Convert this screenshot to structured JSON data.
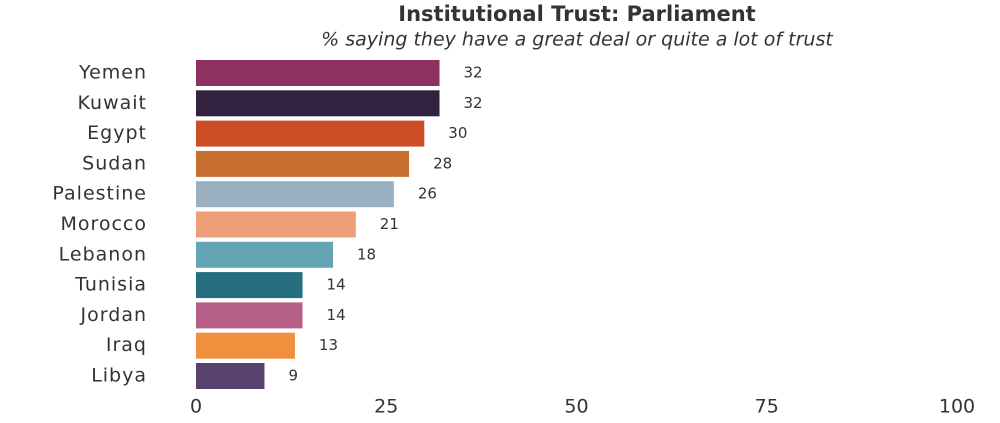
{
  "chart_data": {
    "type": "bar",
    "orientation": "horizontal",
    "title": "Institutional Trust: Parliament",
    "subtitle": "% saying they have a great deal or quite a lot of trust",
    "categories": [
      "Yemen",
      "Kuwait",
      "Egypt",
      "Sudan",
      "Palestine",
      "Morocco",
      "Lebanon",
      "Tunisia",
      "Jordan",
      "Iraq",
      "Libya"
    ],
    "values": [
      32,
      32,
      30,
      28,
      26,
      21,
      18,
      14,
      14,
      13,
      9
    ],
    "colors": [
      "#8e3060",
      "#33223f",
      "#cc4e27",
      "#c87031",
      "#9aafc0",
      "#ee9e78",
      "#63a5b3",
      "#266f80",
      "#b55f88",
      "#f0903f",
      "#5a4270"
    ],
    "xlim": [
      0,
      100
    ],
    "xticks": [
      0,
      25,
      50,
      75,
      100
    ],
    "grid": false
  }
}
